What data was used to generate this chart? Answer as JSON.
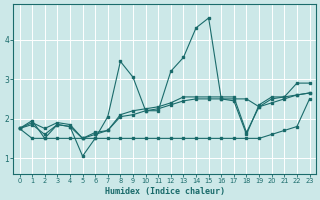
{
  "xlabel": "Humidex (Indice chaleur)",
  "bg_color": "#cce8e8",
  "line_color": "#1a6b6b",
  "grid_color": "#ffffff",
  "xlim": [
    -0.5,
    23.5
  ],
  "ylim": [
    0.6,
    4.9
  ],
  "xticks": [
    0,
    1,
    2,
    3,
    4,
    5,
    6,
    7,
    8,
    9,
    10,
    11,
    12,
    13,
    14,
    15,
    16,
    17,
    18,
    19,
    20,
    21,
    22,
    23
  ],
  "yticks": [
    1,
    2,
    3,
    4
  ],
  "series": [
    [
      1.75,
      1.95,
      1.5,
      1.85,
      1.8,
      1.05,
      1.5,
      2.05,
      3.45,
      3.05,
      2.2,
      2.2,
      3.2,
      3.55,
      4.3,
      4.55,
      2.5,
      2.45,
      1.6,
      2.35,
      2.55,
      2.55,
      2.9,
      2.9
    ],
    [
      1.75,
      1.5,
      1.5,
      1.5,
      1.5,
      1.5,
      1.5,
      1.5,
      1.5,
      1.5,
      1.5,
      1.5,
      1.5,
      1.5,
      1.5,
      1.5,
      1.5,
      1.5,
      1.5,
      1.5,
      1.6,
      1.7,
      1.8,
      2.5
    ],
    [
      1.75,
      1.85,
      1.6,
      1.85,
      1.8,
      1.5,
      1.6,
      1.7,
      2.05,
      2.1,
      2.2,
      2.25,
      2.35,
      2.45,
      2.5,
      2.5,
      2.5,
      2.5,
      2.5,
      2.3,
      2.4,
      2.5,
      2.6,
      2.65
    ],
    [
      1.75,
      1.9,
      1.75,
      1.9,
      1.85,
      1.5,
      1.65,
      1.7,
      2.1,
      2.2,
      2.25,
      2.3,
      2.4,
      2.55,
      2.55,
      2.55,
      2.55,
      2.55,
      1.65,
      2.3,
      2.5,
      2.55,
      2.6,
      2.65
    ]
  ]
}
